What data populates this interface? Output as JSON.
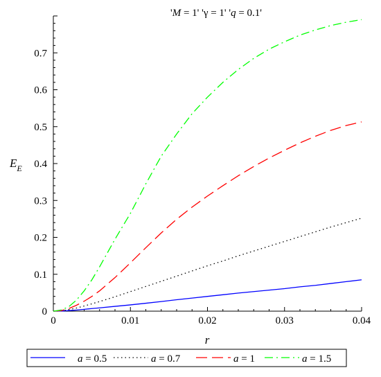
{
  "chart_data": {
    "type": "line",
    "title": "'M = 1' 'γ = 1' 'q = 0.1'",
    "title_parts": [
      {
        "text": "'",
        "italic": false
      },
      {
        "text": "M",
        "italic": true
      },
      {
        "text": " = 1' '",
        "italic": false
      },
      {
        "text": "γ",
        "italic": false
      },
      {
        "text": " = 1' '",
        "italic": false
      },
      {
        "text": "q",
        "italic": true
      },
      {
        "text": " = 0.1'",
        "italic": false
      }
    ],
    "xlabel": "r",
    "ylabel": "E",
    "ylabel_sub": "E",
    "xlim": [
      0,
      0.04
    ],
    "ylim": [
      0,
      0.8
    ],
    "x_ticks": [
      0,
      0.01,
      0.02,
      0.03,
      0.04
    ],
    "x_tick_labels": [
      "0",
      "0.01",
      "0.02",
      "0.03",
      "0.04"
    ],
    "y_ticks": [
      0,
      0.1,
      0.2,
      0.3,
      0.4,
      0.5,
      0.6,
      0.7
    ],
    "y_tick_labels": [
      "0",
      "0.1",
      "0.2",
      "0.3",
      "0.4",
      "0.5",
      "0.6",
      "0.7"
    ],
    "grid": false,
    "legend_position": "bottom",
    "x": [
      0,
      0.001,
      0.002,
      0.003,
      0.004,
      0.005,
      0.006,
      0.008,
      0.01,
      0.012,
      0.014,
      0.016,
      0.018,
      0.02,
      0.022,
      0.024,
      0.026,
      0.028,
      0.03,
      0.032,
      0.034,
      0.036,
      0.038,
      0.04
    ],
    "series": [
      {
        "name": "a = 0.5",
        "legend_label": [
          "a",
          " = 0.5"
        ],
        "color": "#0000ff",
        "dash": "solid",
        "values": [
          0,
          0.0003,
          0.0015,
          0.003,
          0.005,
          0.007,
          0.009,
          0.013,
          0.017,
          0.0215,
          0.026,
          0.031,
          0.0355,
          0.04,
          0.0445,
          0.049,
          0.053,
          0.057,
          0.061,
          0.066,
          0.07,
          0.075,
          0.08,
          0.085
        ]
      },
      {
        "name": "a = 0.7",
        "legend_label": [
          "a",
          " = 0.7"
        ],
        "color": "#000000",
        "dash": "dot",
        "values": [
          0,
          0.001,
          0.004,
          0.0085,
          0.014,
          0.02,
          0.026,
          0.039,
          0.053,
          0.067,
          0.081,
          0.095,
          0.109,
          0.123,
          0.136,
          0.15,
          0.163,
          0.176,
          0.189,
          0.202,
          0.215,
          0.228,
          0.24,
          0.252
        ]
      },
      {
        "name": "a = 1",
        "legend_label": [
          "a",
          " = 1"
        ],
        "color": "#ff0000",
        "dash": "long-dash",
        "values": [
          0,
          0.0015,
          0.007,
          0.016,
          0.027,
          0.04,
          0.055,
          0.091,
          0.131,
          0.172,
          0.212,
          0.249,
          0.282,
          0.312,
          0.34,
          0.367,
          0.392,
          0.415,
          0.436,
          0.456,
          0.474,
          0.49,
          0.503,
          0.513
        ]
      },
      {
        "name": "a = 1.5",
        "legend_label": [
          "a",
          " = 1.5"
        ],
        "color": "#00ff00",
        "dash": "dash-dot",
        "values": [
          0,
          0.003,
          0.012,
          0.03,
          0.055,
          0.085,
          0.12,
          0.195,
          0.265,
          0.345,
          0.42,
          0.48,
          0.535,
          0.58,
          0.62,
          0.655,
          0.685,
          0.71,
          0.73,
          0.748,
          0.762,
          0.774,
          0.783,
          0.79
        ]
      }
    ]
  }
}
